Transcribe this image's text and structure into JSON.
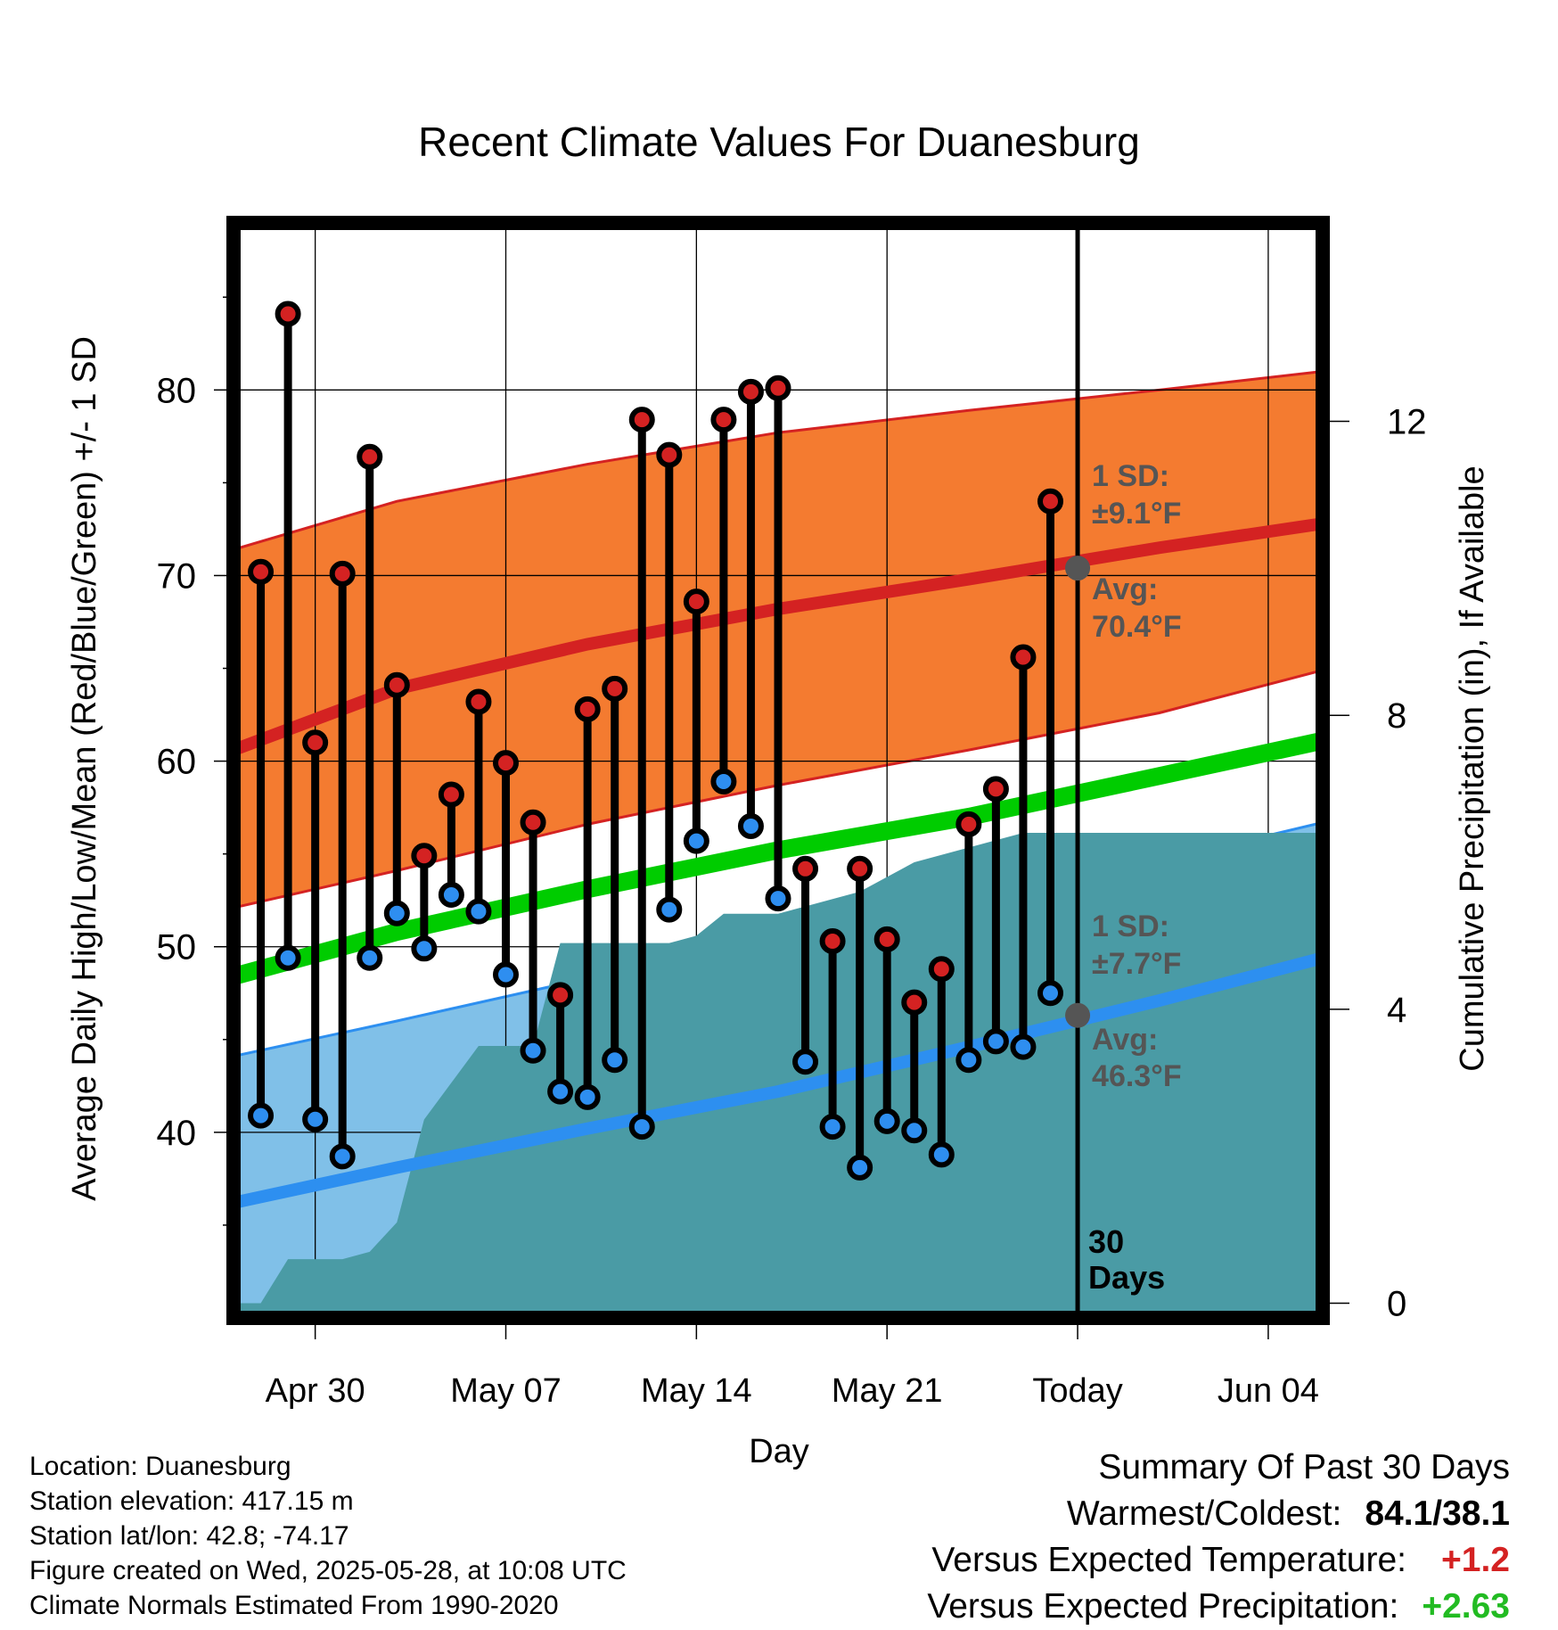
{
  "chart_data": {
    "type": "line",
    "title": "Recent Climate Values For Duanesburg",
    "xlabel": "Day",
    "ylabel_left": "Average Daily High/Low/Mean (Red/Blue/Green) +/- 1 SD",
    "ylabel_right": "Cumulative Precipitation (in), If Available",
    "x_tick_labels": [
      "Apr 30",
      "May 07",
      "May 14",
      "May 21",
      "Today",
      "Jun 04"
    ],
    "x_tick_dates": [
      "2025-04-30",
      "2025-05-07",
      "2025-05-14",
      "2025-05-21",
      "2025-05-28",
      "2025-06-04"
    ],
    "x_range": [
      "2025-04-27",
      "2025-06-06"
    ],
    "y_left_range": [
      30,
      89
    ],
    "y_left_ticks": [
      40,
      50,
      60,
      70,
      80
    ],
    "y_right_range": [
      -0.2,
      14.7
    ],
    "y_right_ticks": [
      0,
      4,
      8,
      12
    ],
    "grid": true,
    "today": "2025-05-28",
    "window_label": "30 Days",
    "dates": [
      "2025-04-28",
      "2025-04-29",
      "2025-04-30",
      "2025-05-01",
      "2025-05-02",
      "2025-05-03",
      "2025-05-04",
      "2025-05-05",
      "2025-05-06",
      "2025-05-07",
      "2025-05-08",
      "2025-05-09",
      "2025-05-10",
      "2025-05-11",
      "2025-05-12",
      "2025-05-13",
      "2025-05-14",
      "2025-05-15",
      "2025-05-16",
      "2025-05-17",
      "2025-05-18",
      "2025-05-19",
      "2025-05-20",
      "2025-05-21",
      "2025-05-22",
      "2025-05-23",
      "2025-05-24",
      "2025-05-25",
      "2025-05-26",
      "2025-05-27"
    ],
    "daily_high": [
      70.2,
      84.1,
      61.0,
      70.1,
      76.4,
      64.1,
      54.9,
      58.2,
      63.2,
      59.9,
      56.7,
      47.4,
      62.8,
      63.9,
      78.4,
      76.5,
      68.6,
      78.4,
      79.9,
      80.1,
      54.2,
      50.3,
      54.2,
      50.4,
      47.0,
      48.8,
      56.6,
      58.5,
      65.6,
      74.0
    ],
    "daily_low": [
      40.9,
      49.4,
      40.7,
      38.7,
      49.4,
      51.8,
      49.9,
      52.8,
      51.9,
      48.5,
      44.4,
      42.2,
      41.9,
      43.9,
      40.3,
      52.0,
      55.7,
      58.9,
      56.5,
      52.6,
      43.8,
      40.3,
      38.1,
      40.6,
      40.1,
      38.8,
      43.9,
      44.9,
      44.6,
      47.5
    ],
    "normals": {
      "dates": [
        "2025-04-27",
        "2025-05-03",
        "2025-05-10",
        "2025-05-17",
        "2025-05-24",
        "2025-05-31",
        "2025-06-06"
      ],
      "avg_high": [
        60.6,
        63.9,
        66.3,
        68.2,
        69.8,
        71.5,
        72.8
      ],
      "avg_high_upper": [
        71.4,
        74.0,
        76.0,
        77.7,
        78.9,
        80.0,
        81.0
      ],
      "avg_high_lower": [
        52.1,
        54.1,
        56.6,
        58.7,
        60.6,
        62.6,
        64.9
      ],
      "avg_mean": [
        48.4,
        50.8,
        53.1,
        55.2,
        57.0,
        59.2,
        61.1
      ],
      "avg_low": [
        36.2,
        38.1,
        40.2,
        42.2,
        44.6,
        47.1,
        49.4
      ],
      "avg_low_upper": [
        44.1,
        46.0,
        48.3,
        50.5,
        52.5,
        54.6,
        56.7
      ]
    },
    "cumulative_precip": {
      "dates": [
        "2025-04-27",
        "2025-04-28",
        "2025-04-29",
        "2025-04-30",
        "2025-05-01",
        "2025-05-02",
        "2025-05-03",
        "2025-05-04",
        "2025-05-05",
        "2025-05-06",
        "2025-05-07",
        "2025-05-08",
        "2025-05-09",
        "2025-05-10",
        "2025-05-11",
        "2025-05-12",
        "2025-05-13",
        "2025-05-14",
        "2025-05-15",
        "2025-05-16",
        "2025-05-17",
        "2025-05-18",
        "2025-05-19",
        "2025-05-20",
        "2025-05-21",
        "2025-05-22",
        "2025-05-23",
        "2025-05-24",
        "2025-05-25",
        "2025-05-26",
        "2025-05-27",
        "2025-05-28",
        "2025-06-06"
      ],
      "values": [
        0.0,
        0.0,
        0.6,
        0.6,
        0.6,
        0.7,
        1.1,
        2.5,
        3.0,
        3.5,
        3.5,
        3.5,
        4.9,
        4.9,
        4.9,
        4.9,
        4.9,
        5.0,
        5.3,
        5.3,
        5.3,
        5.4,
        5.5,
        5.6,
        5.8,
        6.0,
        6.1,
        6.2,
        6.3,
        6.4,
        6.4,
        6.4,
        6.4
      ]
    },
    "annotations": {
      "high_sd_label": "1 SD:",
      "high_sd_value": "±9.1°F",
      "high_avg_label": "Avg:",
      "high_avg_value": "70.4°F",
      "low_sd_label": "1 SD:",
      "low_sd_value": "±7.7°F",
      "low_avg_label": "Avg:",
      "low_avg_value": "46.3°F",
      "today_high_avg": 70.4,
      "today_low_avg": 46.3
    },
    "colors": {
      "high_band": "#f47b30",
      "high_line": "#d42222",
      "mean_line": "#00cc00",
      "low_band": "#80c0e8",
      "low_line": "#2d8ff0",
      "precip": "#4a9ba5",
      "high_marker": "#d42222",
      "low_marker": "#2e8ef0",
      "annotation_text": "#555555"
    }
  },
  "info": {
    "location": "Location: Duanesburg",
    "elevation": "Station elevation: 417.15 m",
    "latlon": "Station lat/lon: 42.8; -74.17",
    "created": "Figure created on Wed, 2025-05-28, at 10:08 UTC",
    "normals": "Climate Normals Estimated From 1990-2020"
  },
  "summary": {
    "heading": "Summary Of Past 30 Days",
    "warmest_coldest_label": "Warmest/Coldest:",
    "warmest_coldest_value": "84.1/38.1",
    "temp_label": "Versus Expected Temperature:",
    "temp_value": "+1.2",
    "temp_color": "#d42222",
    "precip_label": "Versus Expected Precipitation:",
    "precip_value": "+2.63",
    "precip_color": "#22bb22"
  }
}
